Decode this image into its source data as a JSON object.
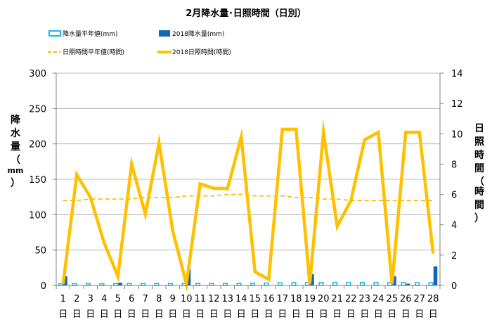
{
  "chart_data": {
    "type": "bar+line",
    "title": "2月降水量･日照時間（日別）",
    "ylabel_left": [
      "降",
      "水",
      "量",
      "（",
      "mm",
      "）"
    ],
    "ylabel_right": [
      "日",
      "照",
      "時",
      "間",
      "（",
      "時",
      "間",
      "）"
    ],
    "ylim_left": [
      0,
      300
    ],
    "yticks_left": [
      "0",
      "50",
      "100",
      "150",
      "200",
      "250",
      "300"
    ],
    "ylim_right": [
      0,
      14
    ],
    "yticks_right": [
      "0",
      "2",
      "4",
      "6",
      "8",
      "10",
      "12",
      "14"
    ],
    "categories": [
      "1",
      "2",
      "3",
      "4",
      "5",
      "6",
      "7",
      "8",
      "9",
      "10",
      "11",
      "12",
      "13",
      "14",
      "15",
      "16",
      "17",
      "18",
      "19",
      "20",
      "21",
      "22",
      "23",
      "24",
      "25",
      "26",
      "27",
      "28"
    ],
    "day_suffix": "日",
    "legend": {
      "rain_avg": "降水量平年値(mm)",
      "rain_2018": "2018降水量(mm)",
      "sun_avg": "日照時間平年値(時間)",
      "sun_2018": "2018日照時間(時間)"
    },
    "series": [
      {
        "name": "降水量平年値(mm)",
        "axis": "left",
        "kind": "bar",
        "values": [
          2.5,
          2.5,
          2.5,
          2.5,
          2.8,
          2.8,
          2.8,
          2.8,
          2.8,
          3.0,
          3.0,
          3.0,
          3.0,
          3.0,
          3.2,
          3.4,
          3.8,
          4.0,
          4.2,
          4.2,
          4.3,
          4.3,
          4.2,
          4.2,
          4.2,
          4.2,
          4.0,
          4.0
        ]
      },
      {
        "name": "2018降水量(mm)",
        "axis": "left",
        "kind": "bar",
        "values": [
          13,
          0,
          0,
          0.5,
          4,
          0,
          0,
          0,
          0,
          23,
          0,
          0,
          0,
          0,
          0,
          0,
          0,
          0,
          16,
          0,
          0,
          0,
          0,
          0,
          13,
          2.5,
          0,
          27
        ]
      },
      {
        "name": "日照時間平年値(時間)",
        "axis": "right",
        "kind": "line-dashed",
        "values": [
          5.6,
          5.6,
          5.7,
          5.7,
          5.7,
          5.7,
          5.8,
          5.8,
          5.8,
          5.9,
          5.9,
          5.9,
          6.0,
          6.0,
          5.9,
          5.9,
          5.9,
          5.8,
          5.8,
          5.7,
          5.7,
          5.6,
          5.6,
          5.6,
          5.6,
          5.6,
          5.6,
          5.6
        ]
      },
      {
        "name": "2018日照時間(時間)",
        "axis": "right",
        "kind": "line",
        "values": [
          0.1,
          7.3,
          5.8,
          2.8,
          0.6,
          8.0,
          4.7,
          9.4,
          3.6,
          0.1,
          6.7,
          6.4,
          6.4,
          9.8,
          0.9,
          0.4,
          10.3,
          10.3,
          0.1,
          10.1,
          3.9,
          5.6,
          9.6,
          10.1,
          0.1,
          10.1,
          10.1,
          2.1
        ]
      }
    ],
    "colors": {
      "rain_avg": "#2AB6E6",
      "rain_2018": "#1466B8",
      "sun_avg": "#F5B800",
      "sun_2018": "#FFC000",
      "grid": "#A6A6A6"
    }
  }
}
